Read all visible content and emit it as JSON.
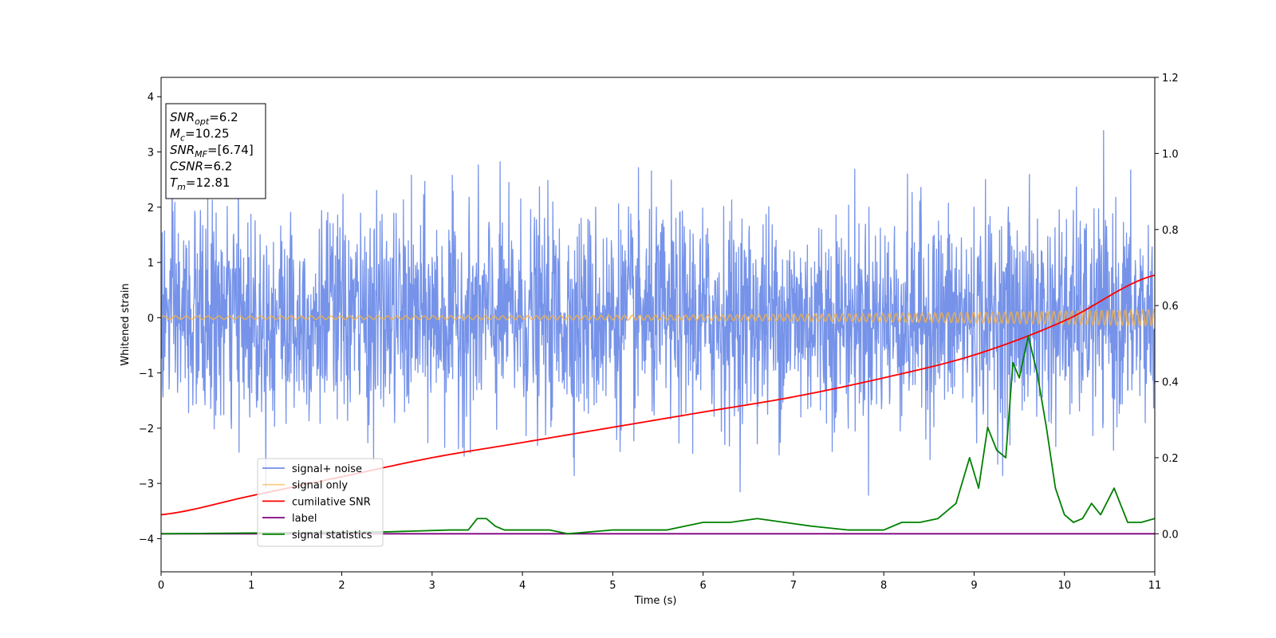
{
  "chart_data": {
    "type": "line",
    "xlabel": "Time (s)",
    "ylabel": "Whitened strain",
    "xlim": [
      0,
      11
    ],
    "ylim": [
      -4.6,
      4.35
    ],
    "y2lim": [
      -0.1,
      1.2
    ],
    "xticks": [
      0,
      1,
      2,
      3,
      4,
      5,
      6,
      7,
      8,
      9,
      10,
      11
    ],
    "yticks": [
      -4,
      -3,
      -2,
      -1,
      0,
      1,
      2,
      3,
      4
    ],
    "y2ticks": [
      "0.0",
      "0.2",
      "0.4",
      "0.6",
      "0.8",
      "1.0",
      "1.2"
    ],
    "grid": false,
    "legend_position": "lower-left",
    "info_box": {
      "lines": [
        {
          "base": "SNR",
          "sub": "opt",
          "value": "=6.2"
        },
        {
          "base": "M",
          "sub": "c",
          "value": "=10.25"
        },
        {
          "base": "SNR",
          "sub": "MF",
          "value": "=[6.74]"
        },
        {
          "base": "CSNR",
          "sub": "",
          "value": "=6.2"
        },
        {
          "base": "T",
          "sub": "m",
          "value": "=12.81"
        }
      ]
    },
    "series": [
      {
        "name": "signal+ noise",
        "color": "#4169e1",
        "axis": "left",
        "kind": "noise",
        "sigma": 0.95,
        "t_range": [
          0,
          11
        ],
        "samples": 2600
      },
      {
        "name": "signal only",
        "color": "#f5b041",
        "axis": "left",
        "kind": "chirp",
        "amplitude_start": 0.03,
        "amplitude_end": 0.15,
        "t_range": [
          0,
          11
        ],
        "samples": 1800
      },
      {
        "name": "cumilative SNR",
        "color": "#ff0000",
        "axis": "right",
        "x": [
          0,
          1,
          2,
          3,
          4,
          5,
          6,
          7,
          8,
          9,
          10,
          11
        ],
        "y": [
          0.05,
          0.1,
          0.15,
          0.2,
          0.24,
          0.28,
          0.32,
          0.36,
          0.41,
          0.47,
          0.56,
          0.68
        ]
      },
      {
        "name": "label",
        "color": "#800080",
        "axis": "right",
        "x": [
          0,
          11
        ],
        "y": [
          0.0,
          0.0
        ]
      },
      {
        "name": "signal statistics",
        "color": "#008000",
        "axis": "right",
        "x": [
          0,
          2.5,
          3.2,
          3.4,
          3.5,
          3.6,
          3.7,
          3.8,
          4.0,
          4.3,
          4.5,
          5.0,
          5.3,
          5.6,
          6.0,
          6.3,
          6.6,
          6.9,
          7.2,
          7.6,
          8.0,
          8.2,
          8.4,
          8.6,
          8.8,
          8.95,
          9.05,
          9.15,
          9.25,
          9.35,
          9.43,
          9.5,
          9.6,
          9.7,
          9.8,
          9.9,
          10.0,
          10.1,
          10.2,
          10.3,
          10.4,
          10.55,
          10.7,
          10.85,
          11.0
        ],
        "y": [
          0.0,
          0.005,
          0.01,
          0.01,
          0.04,
          0.04,
          0.02,
          0.01,
          0.01,
          0.01,
          0.0,
          0.01,
          0.01,
          0.01,
          0.03,
          0.03,
          0.04,
          0.03,
          0.02,
          0.01,
          0.01,
          0.03,
          0.03,
          0.04,
          0.08,
          0.2,
          0.12,
          0.28,
          0.22,
          0.2,
          0.45,
          0.41,
          0.52,
          0.42,
          0.28,
          0.12,
          0.05,
          0.03,
          0.04,
          0.08,
          0.05,
          0.12,
          0.03,
          0.03,
          0.04
        ]
      }
    ]
  }
}
